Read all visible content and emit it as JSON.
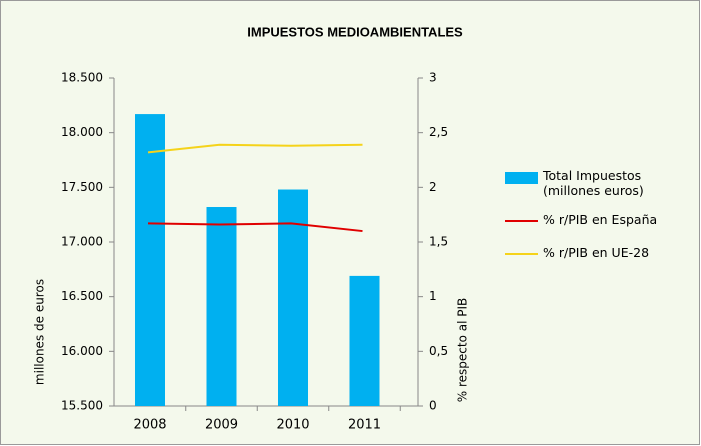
{
  "chart_data": {
    "type": "bar_line",
    "title": "IMPUESTOS MEDIOAMBIENTALES",
    "categories": [
      "2008",
      "2009",
      "2010",
      "2011"
    ],
    "series": [
      {
        "name": "Total Impuestos (millones euros)",
        "color": "#00b0f0",
        "type": "bar",
        "values": [
          18170,
          17320,
          17480,
          16690
        ]
      },
      {
        "name": "% r/PIB en España",
        "color": "#e00000",
        "type": "line",
        "axis": "y2",
        "values": [
          1.67,
          1.66,
          1.67,
          1.6
        ]
      },
      {
        "name": "% r/PIB en UE-28",
        "color": "#f5d31a",
        "type": "line",
        "axis": "y2",
        "values": [
          2.32,
          2.39,
          2.38,
          2.39
        ]
      }
    ],
    "ylabel": "millones de euros",
    "y2label": "% respecto al PIB",
    "ylim": [
      15500,
      18500
    ],
    "yticks": [
      {
        "value": 15500,
        "label": "15.500"
      },
      {
        "value": 16000,
        "label": "16.000"
      },
      {
        "value": 16500,
        "label": "16.500"
      },
      {
        "value": 17000,
        "label": "17.000"
      },
      {
        "value": 17500,
        "label": "17.500"
      },
      {
        "value": 18000,
        "label": "18.000"
      },
      {
        "value": 18500,
        "label": "18.500"
      }
    ],
    "y2lim": [
      0,
      3
    ],
    "y2ticks": [
      0,
      {
        "value": 0.5,
        "label": "0,5"
      },
      1,
      {
        "value": 1.5,
        "label": "1,5"
      },
      2,
      {
        "value": 2.5,
        "label": "2,5"
      },
      3
    ],
    "legend": "right",
    "grid": false
  }
}
